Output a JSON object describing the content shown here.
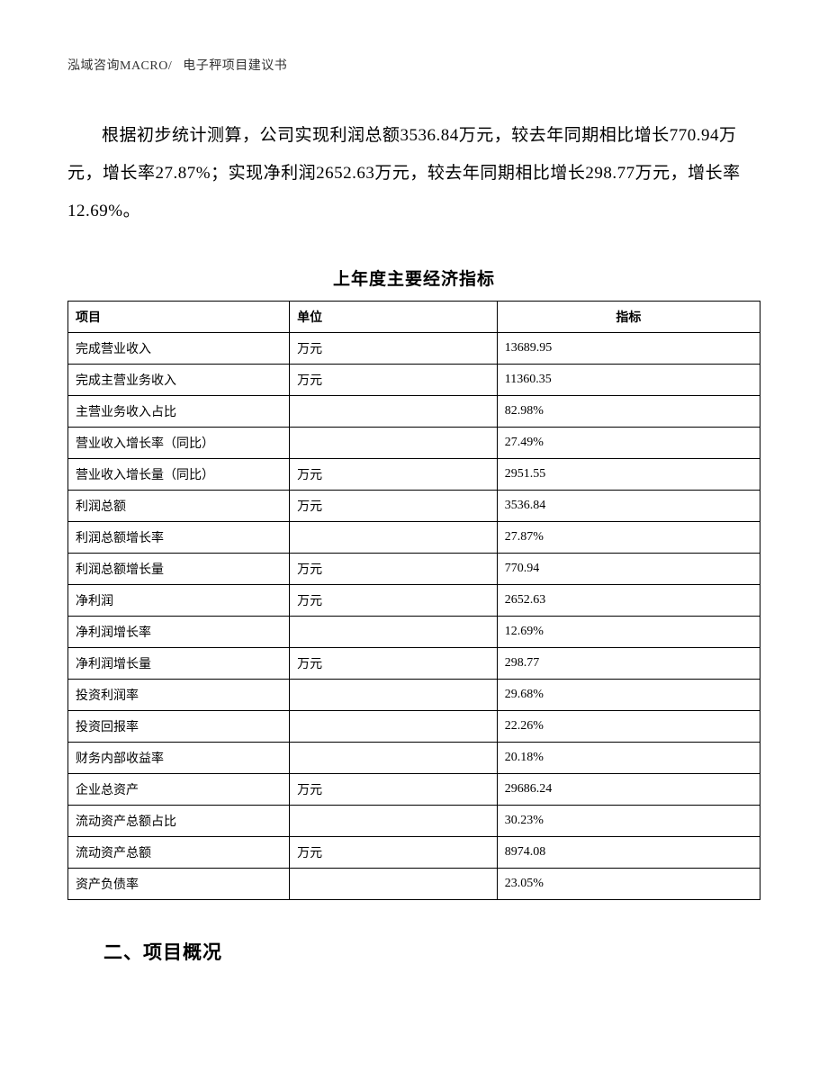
{
  "header": {
    "company": "泓域咨询MACRO/",
    "doc_title": "电子秤项目建议书"
  },
  "paragraph": "根据初步统计测算，公司实现利润总额3536.84万元，较去年同期相比增长770.94万元，增长率27.87%；实现净利润2652.63万元，较去年同期相比增长298.77万元，增长率12.69%。",
  "table": {
    "title": "上年度主要经济指标",
    "columns": [
      "项目",
      "单位",
      "指标"
    ],
    "rows": [
      [
        "完成营业收入",
        "万元",
        "13689.95"
      ],
      [
        "完成主营业务收入",
        "万元",
        "11360.35"
      ],
      [
        "主营业务收入占比",
        "",
        "82.98%"
      ],
      [
        "营业收入增长率（同比）",
        "",
        "27.49%"
      ],
      [
        "营业收入增长量（同比）",
        "万元",
        "2951.55"
      ],
      [
        "利润总额",
        "万元",
        "3536.84"
      ],
      [
        "利润总额增长率",
        "",
        "27.87%"
      ],
      [
        "利润总额增长量",
        "万元",
        "770.94"
      ],
      [
        "净利润",
        "万元",
        "2652.63"
      ],
      [
        "净利润增长率",
        "",
        "12.69%"
      ],
      [
        "净利润增长量",
        "万元",
        "298.77"
      ],
      [
        "投资利润率",
        "",
        "29.68%"
      ],
      [
        "投资回报率",
        "",
        "22.26%"
      ],
      [
        "财务内部收益率",
        "",
        "20.18%"
      ],
      [
        "企业总资产",
        "万元",
        "29686.24"
      ],
      [
        "流动资产总额占比",
        "",
        "30.23%"
      ],
      [
        "流动资产总额",
        "万元",
        "8974.08"
      ],
      [
        "资产负债率",
        "",
        "23.05%"
      ]
    ]
  },
  "section_heading": "二、项目概况"
}
